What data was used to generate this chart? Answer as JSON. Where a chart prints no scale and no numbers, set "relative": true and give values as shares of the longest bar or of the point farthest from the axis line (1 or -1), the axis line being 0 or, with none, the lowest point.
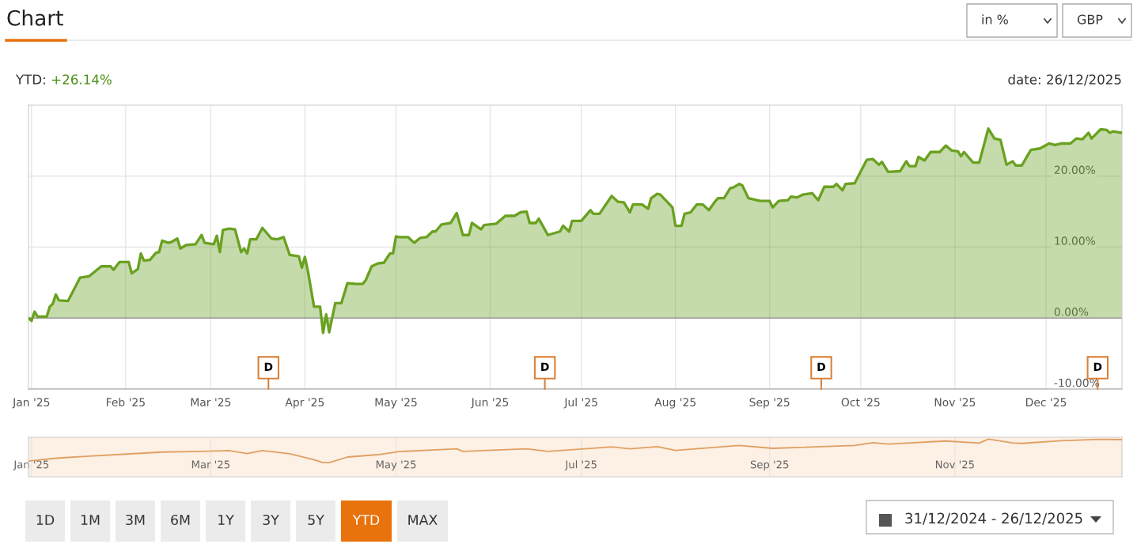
{
  "chart_data": [
    {
      "type": "area",
      "title": "Chart",
      "subtitle": "YTD: +26.14%",
      "annotations": [
        "date: 26/12/2025",
        "in %",
        "GBP",
        "1D",
        "1M",
        "3M",
        "6M",
        "1Y",
        "3Y",
        "5Y",
        "YTD",
        "MAX",
        "31/12/2024 - 26/12/2025",
        {
          "text": "D",
          "x": "2025-03-20",
          "y": -7
        },
        {
          "text": "D",
          "x": "2025-06-19",
          "y": -7
        },
        {
          "text": "D",
          "x": "2025-09-18",
          "y": -7
        },
        {
          "text": "D",
          "x": "2025-12-18",
          "y": -7
        }
      ],
      "x": [
        "2024-12-31",
        "2025-01-01",
        "2025-01-02",
        "2025-01-03",
        "2025-01-06",
        "2025-01-07",
        "2025-01-08",
        "2025-01-09",
        "2025-01-10",
        "2025-01-13",
        "2025-01-17",
        "2025-01-20",
        "2025-01-24",
        "2025-01-27",
        "2025-01-28",
        "2025-01-30",
        "2025-02-02",
        "2025-02-03",
        "2025-02-05",
        "2025-02-06",
        "2025-02-07",
        "2025-02-09",
        "2025-02-11",
        "2025-02-12",
        "2025-02-13",
        "2025-02-15",
        "2025-02-16",
        "2025-02-18",
        "2025-02-19",
        "2025-02-21",
        "2025-02-24",
        "2025-02-26",
        "2025-02-27",
        "2025-03-02",
        "2025-03-03",
        "2025-03-04",
        "2025-03-05",
        "2025-03-07",
        "2025-03-09",
        "2025-03-11",
        "2025-03-12",
        "2025-03-13",
        "2025-03-14",
        "2025-03-16",
        "2025-03-18",
        "2025-03-21",
        "2025-03-23",
        "2025-03-25",
        "2025-03-27",
        "2025-03-30",
        "2025-03-31",
        "2025-04-01",
        "2025-04-02",
        "2025-04-04",
        "2025-04-06",
        "2025-04-07",
        "2025-04-08",
        "2025-04-09",
        "2025-04-11",
        "2025-04-13",
        "2025-04-15",
        "2025-04-18",
        "2025-04-20",
        "2025-04-21",
        "2025-04-23",
        "2025-04-25",
        "2025-04-27",
        "2025-04-29",
        "2025-04-30",
        "2025-05-01",
        "2025-05-02",
        "2025-05-05",
        "2025-05-07",
        "2025-05-09",
        "2025-05-11",
        "2025-05-13",
        "2025-05-14",
        "2025-05-16",
        "2025-05-19",
        "2025-05-21",
        "2025-05-23",
        "2025-05-25",
        "2025-05-26",
        "2025-05-29",
        "2025-05-30",
        "2025-06-03",
        "2025-06-06",
        "2025-06-09",
        "2025-06-11",
        "2025-06-13",
        "2025-06-14",
        "2025-06-16",
        "2025-06-17",
        "2025-06-20",
        "2025-06-24",
        "2025-06-25",
        "2025-06-27",
        "2025-06-28",
        "2025-07-01",
        "2025-07-04",
        "2025-07-05",
        "2025-07-07",
        "2025-07-11",
        "2025-07-13",
        "2025-07-15",
        "2025-07-17",
        "2025-07-18",
        "2025-07-21",
        "2025-07-23",
        "2025-07-24",
        "2025-07-26",
        "2025-07-27",
        "2025-07-31",
        "2025-08-01",
        "2025-08-03",
        "2025-08-04",
        "2025-08-06",
        "2025-08-08",
        "2025-08-10",
        "2025-08-12",
        "2025-08-14",
        "2025-08-15",
        "2025-08-17",
        "2025-08-19",
        "2025-08-20",
        "2025-08-22",
        "2025-08-23",
        "2025-08-25",
        "2025-08-28",
        "2025-08-29",
        "2025-09-01",
        "2025-09-02",
        "2025-09-04",
        "2025-09-07",
        "2025-09-08",
        "2025-09-10",
        "2025-09-12",
        "2025-09-15",
        "2025-09-17",
        "2025-09-19",
        "2025-09-22",
        "2025-09-23",
        "2025-09-25",
        "2025-09-26",
        "2025-09-29",
        "2025-10-03",
        "2025-10-05",
        "2025-10-07",
        "2025-10-08",
        "2025-10-10",
        "2025-10-14",
        "2025-10-16",
        "2025-10-17",
        "2025-10-19",
        "2025-10-20",
        "2025-10-22",
        "2025-10-24",
        "2025-10-27",
        "2025-10-29",
        "2025-10-31",
        "2025-11-02",
        "2025-11-03",
        "2025-11-04",
        "2025-11-07",
        "2025-11-09",
        "2025-11-12",
        "2025-11-14",
        "2025-11-16",
        "2025-11-18",
        "2025-11-20",
        "2025-11-21",
        "2025-11-23",
        "2025-11-26",
        "2025-11-29",
        "2025-12-02",
        "2025-12-04",
        "2025-12-06",
        "2025-12-09",
        "2025-12-11",
        "2025-12-13",
        "2025-12-15",
        "2025-12-16",
        "2025-12-19",
        "2025-12-21",
        "2025-12-22",
        "2025-12-23",
        "2025-12-26"
      ],
      "values": [
        0,
        -0.4,
        0.9,
        0.2,
        0.2,
        1.6,
        2.0,
        3.3,
        2.5,
        2.4,
        5.7,
        5.9,
        7.3,
        7.3,
        6.8,
        7.9,
        7.9,
        6.3,
        6.9,
        9.1,
        8.1,
        8.2,
        9.2,
        9.3,
        10.9,
        10.6,
        10.7,
        11.2,
        9.8,
        10.3,
        10.4,
        11.7,
        10.6,
        10.4,
        11.6,
        9.3,
        12.4,
        12.6,
        12.5,
        9.3,
        9.8,
        9.1,
        11.1,
        11.1,
        12.7,
        11.2,
        11.1,
        11.4,
        8.9,
        8.7,
        7.1,
        8.6,
        6.6,
        1.6,
        1.6,
        -2.1,
        0.5,
        -2.0,
        2.1,
        2.1,
        4.9,
        4.8,
        4.8,
        5.3,
        7.3,
        7.7,
        7.8,
        9.1,
        9.1,
        11.5,
        11.4,
        11.4,
        10.6,
        11.3,
        11.4,
        12.2,
        12.2,
        13.2,
        13.4,
        14.8,
        11.7,
        11.7,
        13.4,
        12.5,
        13.1,
        13.3,
        14.4,
        14.4,
        14.9,
        15.0,
        13.4,
        13.4,
        14.0,
        11.7,
        12.2,
        13.0,
        12.2,
        13.7,
        13.7,
        15.2,
        14.7,
        14.7,
        17.2,
        16.4,
        16.3,
        14.9,
        16.0,
        16.0,
        15.4,
        16.9,
        17.5,
        17.4,
        15.6,
        13.0,
        13.0,
        14.7,
        14.9,
        16.0,
        16.0,
        15.2,
        16.4,
        16.9,
        16.9,
        18.3,
        18.4,
        18.9,
        18.7,
        16.9,
        16.6,
        16.5,
        16.5,
        15.6,
        16.5,
        16.6,
        17.1,
        17.0,
        17.4,
        17.6,
        16.6,
        18.5,
        18.5,
        18.9,
        18.0,
        18.9,
        19.0,
        22.3,
        22.4,
        21.6,
        22.0,
        20.6,
        20.7,
        22.1,
        21.4,
        21.4,
        22.7,
        22.2,
        23.4,
        23.4,
        24.3,
        23.6,
        23.5,
        22.8,
        23.4,
        21.9,
        21.9,
        26.7,
        25.3,
        25.1,
        21.6,
        22.1,
        21.5,
        21.5,
        23.7,
        23.9,
        24.6,
        24.4,
        24.6,
        24.6,
        25.3,
        25.2,
        26.1,
        25.3,
        26.6,
        26.5,
        26.1,
        26.3,
        26.1
      ],
      "color": "#6aa121",
      "xlim": [
        "2024-12-31",
        "2025-12-26"
      ],
      "xticks": [
        {
          "value": "2025-01-01",
          "label": "Jan '25"
        },
        {
          "value": "2025-02-01",
          "label": "Feb '25"
        },
        {
          "value": "2025-03-01",
          "label": "Mar '25"
        },
        {
          "value": "2025-04-01",
          "label": "Apr '25"
        },
        {
          "value": "2025-05-01",
          "label": "May '25"
        },
        {
          "value": "2025-06-01",
          "label": "Jun '25"
        },
        {
          "value": "2025-07-01",
          "label": "Jul '25"
        },
        {
          "value": "2025-08-01",
          "label": "Aug '25"
        },
        {
          "value": "2025-09-01",
          "label": "Sep '25"
        },
        {
          "value": "2025-10-01",
          "label": "Oct '25"
        },
        {
          "value": "2025-11-01",
          "label": "Nov '25"
        },
        {
          "value": "2025-12-01",
          "label": "Dec '25"
        }
      ],
      "ylim": [
        -10,
        30
      ],
      "yticks": [
        {
          "value": -10,
          "label": "-10.00%"
        },
        {
          "value": 0,
          "label": "0.00%"
        },
        {
          "value": 10,
          "label": "10.00%"
        },
        {
          "value": 20,
          "label": "20.00%"
        }
      ],
      "grid": true,
      "ref_lines": [
        {
          "axis": "y",
          "value": 0,
          "color": "#999999"
        }
      ]
    },
    {
      "type": "line",
      "relative": true,
      "color": "#e0a064",
      "x": [
        "2024-12-31",
        "2025-01-09",
        "2025-01-20",
        "2025-01-30",
        "2025-02-13",
        "2025-02-26",
        "2025-03-07",
        "2025-03-13",
        "2025-03-18",
        "2025-03-27",
        "2025-04-04",
        "2025-04-07",
        "2025-04-09",
        "2025-04-15",
        "2025-04-25",
        "2025-05-02",
        "2025-05-21",
        "2025-05-23",
        "2025-06-13",
        "2025-06-20",
        "2025-07-11",
        "2025-07-17",
        "2025-07-26",
        "2025-08-01",
        "2025-08-22",
        "2025-09-02",
        "2025-09-29",
        "2025-10-05",
        "2025-10-10",
        "2025-10-29",
        "2025-11-09",
        "2025-11-12",
        "2025-11-20",
        "2025-11-23",
        "2025-12-06",
        "2025-12-19",
        "2025-12-26"
      ],
      "values": [
        0.07,
        0.19,
        0.28,
        0.35,
        0.45,
        0.48,
        0.51,
        0.39,
        0.51,
        0.38,
        0.13,
        0,
        0.0,
        0.24,
        0.34,
        0.47,
        0.59,
        0.48,
        0.59,
        0.48,
        0.67,
        0.59,
        0.68,
        0.52,
        0.73,
        0.61,
        0.73,
        0.85,
        0.79,
        0.92,
        0.83,
        1,
        0.84,
        0.82,
        0.93,
        0.99,
        0.98
      ],
      "xlim": [
        "2024-12-31",
        "2025-12-26"
      ],
      "xticks": [
        {
          "value": "2025-01-01",
          "label": "Jan '25"
        },
        {
          "value": "2025-03-01",
          "label": "Mar '25"
        },
        {
          "value": "2025-05-01",
          "label": "May '25"
        },
        {
          "value": "2025-07-01",
          "label": "Jul '25"
        },
        {
          "value": "2025-09-01",
          "label": "Sep '25"
        },
        {
          "value": "2025-11-01",
          "label": "Nov '25"
        }
      ],
      "grid": "x",
      "tick_labels": "x"
    }
  ]
}
